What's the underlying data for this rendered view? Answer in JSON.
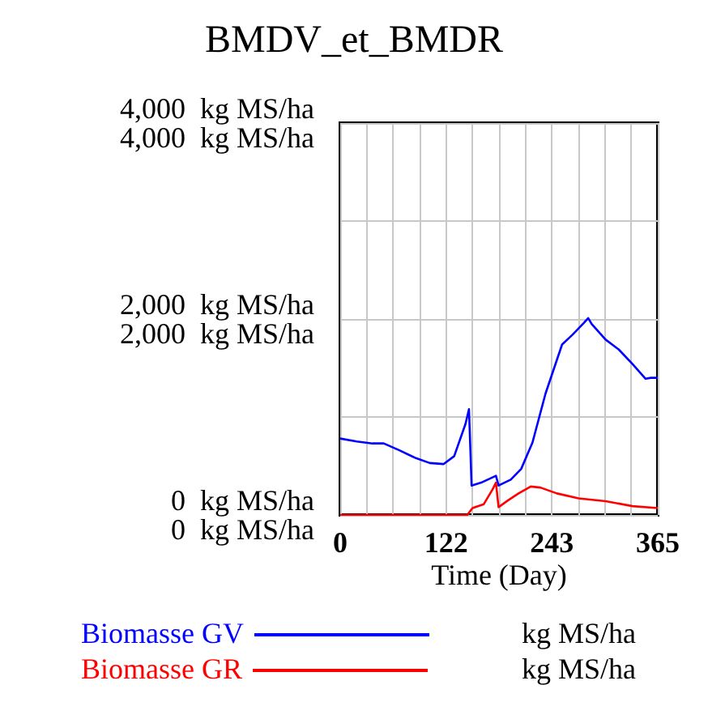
{
  "chart_data": {
    "type": "line",
    "title": "BMDV_et_BMDR",
    "xlabel": "Time (Day)",
    "xlim": [
      0,
      365
    ],
    "xticks": [
      0,
      {
        "value": 30.42,
        "label": null
      },
      {
        "value": 60.83,
        "label": null
      },
      {
        "value": 91.25,
        "label": null
      },
      {
        "value": 121.67,
        "label": "122"
      },
      {
        "value": 152.08,
        "label": null
      },
      {
        "value": 182.5,
        "label": null
      },
      {
        "value": 212.92,
        "label": null
      },
      {
        "value": 243.33,
        "label": "243"
      },
      {
        "value": 273.75,
        "label": null
      },
      {
        "value": 304.17,
        "label": null
      },
      {
        "value": 334.58,
        "label": null
      },
      365
    ],
    "ylim": [
      0,
      4000
    ],
    "yticks": [
      {
        "value": 0,
        "label": "0  kg MS/ha"
      },
      {
        "value": 1000,
        "label": null
      },
      {
        "value": 2000,
        "label": "2,000  kg MS/ha"
      },
      {
        "value": 3000,
        "label": null
      },
      {
        "value": 4000,
        "label": "4,000  kg MS/ha"
      }
    ],
    "y2lim": [
      0,
      4000
    ],
    "y2ticks": [
      {
        "value": 0,
        "label": "0  kg MS/ha"
      },
      {
        "value": 2000,
        "label": "2,000  kg MS/ha"
      },
      {
        "value": 4000,
        "label": "4,000  kg MS/ha"
      }
    ],
    "grid": true,
    "legend": "bottom",
    "annotations": [
      "kg MS/ha",
      "kg MS/ha"
    ],
    "series": [
      {
        "name": "Biomasse GV",
        "color": "#0000ff",
        "x": [
          0,
          19,
          37,
          50,
          68,
          87,
          103,
          119,
          131,
          144,
          148,
          151,
          162,
          179,
          182,
          196,
          208,
          221,
          236,
          255,
          267,
          280,
          285,
          289,
          305,
          320,
          336,
          351,
          357,
          365
        ],
        "values": [
          780,
          750,
          730,
          730,
          660,
          580,
          530,
          520,
          600,
          930,
          1080,
          300,
          330,
          400,
          300,
          360,
          470,
          740,
          1240,
          1740,
          1840,
          1960,
          2010,
          1950,
          1790,
          1690,
          1540,
          1390,
          1400,
          1400
        ]
      },
      {
        "name": "Biomasse GR",
        "color": "#ff0000",
        "axis": "y2",
        "x": [
          0,
          146,
          152,
          165,
          175,
          179,
          182,
          193,
          205,
          219,
          230,
          249,
          274,
          305,
          336,
          365
        ],
        "values": [
          0,
          0,
          70,
          110,
          260,
          330,
          80,
          150,
          220,
          290,
          280,
          220,
          170,
          140,
          90,
          70
        ]
      }
    ]
  }
}
